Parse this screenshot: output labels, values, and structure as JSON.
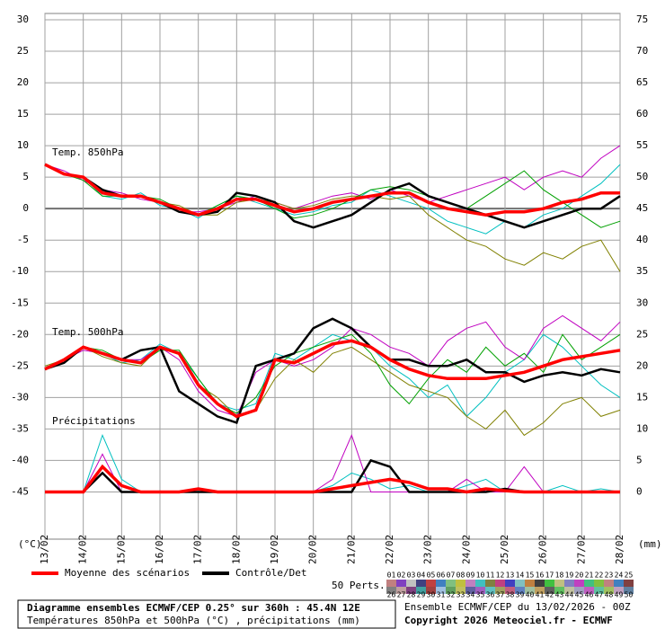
{
  "chart_data": {
    "type": "line",
    "x": [
      0,
      0.5,
      1,
      1.5,
      2,
      2.5,
      3,
      3.5,
      4,
      4.5,
      5,
      5.5,
      6,
      6.5,
      7,
      7.5,
      8,
      8.5,
      9,
      9.5,
      10,
      10.5,
      11,
      11.5,
      12,
      12.5,
      13,
      13.5,
      14,
      14.5,
      15
    ],
    "xlim": [
      0,
      15
    ],
    "xticks": [
      {
        "value": 0,
        "label": "13/02"
      },
      {
        "value": 1,
        "label": "14/02"
      },
      {
        "value": 2,
        "label": "15/02"
      },
      {
        "value": 3,
        "label": "16/02"
      },
      {
        "value": 4,
        "label": "17/02"
      },
      {
        "value": 5,
        "label": "18/02"
      },
      {
        "value": 6,
        "label": "19/02"
      },
      {
        "value": 7,
        "label": "20/02"
      },
      {
        "value": 8,
        "label": "21/02"
      },
      {
        "value": 9,
        "label": "22/02"
      },
      {
        "value": 10,
        "label": "23/02"
      },
      {
        "value": 11,
        "label": "24/02"
      },
      {
        "value": 12,
        "label": "25/02"
      },
      {
        "value": 13,
        "label": "26/02"
      },
      {
        "value": 14,
        "label": "27/02"
      },
      {
        "value": 15,
        "label": "28/02"
      }
    ],
    "ylim": [
      -52.5,
      31
    ],
    "yticks": [
      30,
      25,
      20,
      15,
      10,
      5,
      0,
      -5,
      -10,
      -15,
      -20,
      -25,
      -30,
      -35,
      -40,
      -45
    ],
    "y2lim": [
      -7.5,
      76
    ],
    "y2ticks": [
      75,
      70,
      65,
      60,
      55,
      50,
      45,
      40,
      35,
      30,
      25,
      20,
      15,
      10,
      5,
      0
    ],
    "ylabel": "(°C)",
    "y2label": "(mm)",
    "grid": true,
    "legend": [
      {
        "name": "Moyenne des scénarios",
        "color": "#ff0000"
      },
      {
        "name": "Contrôle/Det",
        "color": "#000000"
      }
    ],
    "panels": [
      {
        "label": "Temp. 850hPa",
        "axis": "y",
        "mean": [
          7,
          5.5,
          5,
          2.5,
          2,
          2,
          1,
          0,
          -1,
          0,
          1.5,
          1.5,
          0.5,
          -0.5,
          0,
          1,
          1.5,
          2,
          2.5,
          2.5,
          1,
          0,
          -0.5,
          -1,
          -0.5,
          -0.5,
          0,
          1,
          1.5,
          2.5,
          2.5
        ],
        "control": [
          7,
          5.5,
          5,
          3,
          2,
          2,
          1,
          -0.5,
          -1,
          -0.5,
          2.5,
          2,
          1,
          -2,
          -3,
          -2,
          -1,
          1,
          3,
          4,
          2,
          1,
          0,
          -1,
          -2,
          -3,
          -2,
          -1,
          0,
          0,
          2
        ],
        "members": [
          {
            "color": "#00c0c0",
            "values": [
              7,
              5.5,
              5,
              2,
              1.5,
              2.5,
              0.5,
              0,
              -1.5,
              0.5,
              2,
              1,
              0,
              -1,
              -0.5,
              0.5,
              1,
              3,
              2,
              1,
              0,
              -2,
              -3,
              -4,
              -2,
              -3,
              -1,
              0,
              2,
              4,
              7
            ]
          },
          {
            "color": "#c000c0",
            "values": [
              7,
              6,
              4.5,
              3,
              2.5,
              1.5,
              1,
              -0.5,
              -0.5,
              0,
              1,
              2,
              1,
              0,
              1,
              2,
              2.5,
              1.5,
              3,
              2,
              1,
              2,
              3,
              4,
              5,
              3,
              5,
              6,
              5,
              8,
              10
            ]
          },
          {
            "color": "#808000",
            "values": [
              7,
              5.5,
              5,
              2.5,
              2,
              2,
              1,
              0.5,
              -1,
              -1,
              1,
              1.5,
              1,
              0,
              0.5,
              1.5,
              2,
              2,
              1.5,
              2,
              -1,
              -3,
              -5,
              -6,
              -8,
              -9,
              -7,
              -8,
              -6,
              -5,
              -10
            ]
          },
          {
            "color": "#00a000",
            "values": [
              7,
              5.5,
              4.5,
              2,
              2,
              2,
              1.5,
              0,
              -1,
              0.5,
              2,
              1.5,
              0,
              -1.5,
              -1,
              0,
              1.5,
              3,
              3.5,
              3,
              2,
              1,
              0,
              2,
              4,
              6,
              3,
              1,
              -1,
              -3,
              -2
            ]
          }
        ]
      },
      {
        "label": "Temp. 500hPa",
        "axis": "y",
        "mean": [
          -25.5,
          -24,
          -22,
          -23,
          -24,
          -24.5,
          -22,
          -23,
          -28,
          -31,
          -33,
          -32,
          -24,
          -24.5,
          -23,
          -21.5,
          -21,
          -22,
          -24,
          -25.5,
          -26.5,
          -27,
          -27,
          -27,
          -26.5,
          -26,
          -25,
          -24,
          -23.5,
          -23,
          -22.5
        ],
        "control": [
          -25.5,
          -24.5,
          -22,
          -23,
          -24,
          -22.5,
          -22,
          -29,
          -31,
          -33,
          -34,
          -25,
          -24,
          -23,
          -19,
          -17.5,
          -19,
          -22,
          -24,
          -24,
          -25,
          -25,
          -24,
          -26,
          -26,
          -27.5,
          -26.5,
          -26,
          -26.5,
          -25.5,
          -26
        ],
        "members": [
          {
            "color": "#00c0c0",
            "values": [
              -25.5,
              -24,
              -22,
              -23,
              -24.5,
              -24,
              -21.5,
              -23,
              -27,
              -31,
              -32,
              -31,
              -23,
              -24,
              -22,
              -20,
              -21,
              -22,
              -25,
              -27,
              -30,
              -28,
              -33,
              -30,
              -26,
              -24,
              -20,
              -22,
              -25,
              -28,
              -30
            ]
          },
          {
            "color": "#c000c0",
            "values": [
              -25.5,
              -24,
              -22.5,
              -23,
              -24,
              -24,
              -22,
              -24,
              -29,
              -32,
              -33,
              -26,
              -24,
              -25,
              -24,
              -22,
              -19,
              -20,
              -22,
              -23,
              -25,
              -21,
              -19,
              -18,
              -22,
              -24,
              -19,
              -17,
              -19,
              -21,
              -18
            ]
          },
          {
            "color": "#808000",
            "values": [
              -25,
              -24,
              -22,
              -23.5,
              -24.5,
              -25,
              -22,
              -23,
              -28,
              -30,
              -33,
              -32,
              -27,
              -24,
              -26,
              -23,
              -22,
              -24,
              -26,
              -28,
              -29,
              -30,
              -33,
              -35,
              -32,
              -36,
              -34,
              -31,
              -30,
              -33,
              -32
            ]
          },
          {
            "color": "#00a000",
            "values": [
              -25.5,
              -24.5,
              -22,
              -22.5,
              -24,
              -24.5,
              -22.5,
              -22.5,
              -27,
              -31,
              -32.5,
              -30,
              -25,
              -23,
              -22,
              -21,
              -20,
              -23,
              -28,
              -31,
              -27,
              -24,
              -26,
              -22,
              -25,
              -23,
              -26,
              -20,
              -24,
              -22,
              -20
            ]
          }
        ]
      },
      {
        "label": "Précipitations",
        "axis": "y2",
        "mean": [
          0,
          0,
          0,
          4,
          1,
          0,
          0,
          0,
          0.5,
          0,
          0,
          0,
          0,
          0,
          0,
          0.5,
          1,
          1.5,
          2,
          1.5,
          0.5,
          0.5,
          0,
          0.5,
          0.2,
          0,
          0,
          0,
          0,
          0,
          0
        ],
        "control": [
          0,
          0,
          0,
          3,
          0,
          0,
          0,
          0,
          0,
          0,
          0,
          0,
          0,
          0,
          0,
          0,
          0,
          5,
          4,
          0,
          0,
          0,
          0,
          0,
          0.5,
          0,
          0,
          0,
          0,
          0,
          0
        ],
        "members": [
          {
            "color": "#00c0c0",
            "values": [
              0,
              0,
              0,
              9,
              2,
              0,
              0,
              0,
              0.5,
              0,
              0,
              0,
              0,
              0,
              0,
              1,
              3,
              2,
              0.5,
              1,
              0,
              0,
              1,
              2,
              0,
              0,
              0,
              1,
              0,
              0.5,
              0
            ]
          },
          {
            "color": "#c000c0",
            "values": [
              0,
              0,
              0,
              6,
              0,
              0,
              0,
              0,
              0,
              0,
              0,
              0,
              0,
              0,
              0,
              2,
              9,
              0,
              0,
              0,
              0,
              0,
              2,
              0,
              0,
              4,
              0,
              0,
              0,
              0,
              0
            ]
          }
        ]
      }
    ],
    "members_legend": {
      "title": "50 Perts.",
      "labels": [
        "01",
        "02",
        "03",
        "04",
        "05",
        "06",
        "07",
        "08",
        "09",
        "10",
        "11",
        "12",
        "13",
        "14",
        "15",
        "16",
        "17",
        "18",
        "19",
        "20",
        "21",
        "22",
        "23",
        "24",
        "25",
        "26",
        "27",
        "28",
        "29",
        "30",
        "31",
        "32",
        "33",
        "34",
        "35",
        "36",
        "37",
        "38",
        "39",
        "40",
        "41",
        "42",
        "43",
        "44",
        "45",
        "46",
        "47",
        "48",
        "49",
        "50"
      ],
      "colors": [
        "#c08080",
        "#8040c0",
        "#c0c0c0",
        "#404080",
        "#c04040",
        "#4080c0",
        "#80c080",
        "#c0c040",
        "#c080c0",
        "#40c0c0",
        "#808040",
        "#c04080",
        "#4040c0",
        "#80c0c0",
        "#c08040",
        "#404040",
        "#40c040",
        "#c0c080",
        "#8080c0",
        "#c040c0",
        "#40c080",
        "#80c040",
        "#c08080",
        "#4080c0",
        "#804040",
        "#808080",
        "#c0a0a0",
        "#804080",
        "#40a0a0",
        "#a04040",
        "#a0c0e0",
        "#60a060",
        "#c0c060",
        "#6060a0",
        "#a060c0",
        "#60c0c0",
        "#a0a060",
        "#c06080",
        "#6080c0",
        "#a0c0a0",
        "#c0a060",
        "#606060",
        "#60c060",
        "#c0c0a0",
        "#a0a0c0",
        "#c060c0",
        "#60c0a0",
        "#a0c060",
        "#c0a0c0",
        "#6080a0"
      ]
    },
    "footer": {
      "line1": "Diagramme ensembles ECMWF/CEP 0.25° sur 360h : 45.4N 12E",
      "line2": "Températures 850hPa et 500hPa (°C) , précipitations (mm)",
      "line3": "Ensemble ECMWF/CEP du 13/02/2026 - 00Z",
      "line4": "Copyright 2026 Meteociel.fr - ECMWF"
    }
  }
}
